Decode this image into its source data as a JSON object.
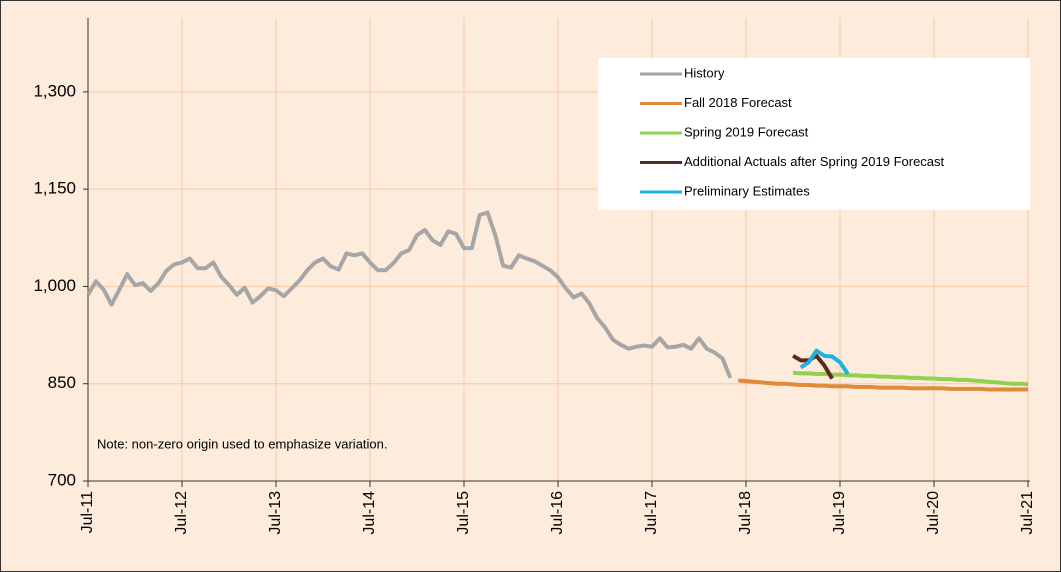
{
  "chart_data": {
    "type": "line",
    "note": "Note: non-zero origin used to emphasize variation.",
    "categories": [
      "Jul-11",
      null,
      null,
      null,
      null,
      null,
      null,
      null,
      null,
      null,
      null,
      null,
      "Jul-12",
      null,
      null,
      null,
      null,
      null,
      null,
      null,
      null,
      null,
      null,
      null,
      "Jul-13",
      null,
      null,
      null,
      null,
      null,
      null,
      null,
      null,
      null,
      null,
      null,
      "Jul-14",
      null,
      null,
      null,
      null,
      null,
      null,
      null,
      null,
      null,
      null,
      null,
      "Jul-15",
      null,
      null,
      null,
      null,
      null,
      null,
      null,
      null,
      null,
      null,
      null,
      "Jul-16",
      null,
      null,
      null,
      null,
      null,
      null,
      null,
      null,
      null,
      null,
      null,
      "Jul-17",
      null,
      null,
      null,
      null,
      null,
      null,
      null,
      null,
      null,
      null,
      null,
      "Jul-18",
      null,
      null,
      null,
      null,
      null,
      null,
      null,
      null,
      null,
      null,
      null,
      "Jul-19",
      null,
      null,
      null,
      null,
      null,
      null,
      null,
      null,
      null,
      null,
      null,
      "Jul-20",
      null,
      null,
      null,
      null,
      null,
      null,
      null,
      null,
      null,
      null,
      null,
      "Jul-21"
    ],
    "series": [
      {
        "name": "History",
        "color": "#a6a6a6",
        "values": [
          987,
          1008,
          995,
          972,
          995,
          1019,
          1002,
          1005,
          993,
          1005,
          1024,
          1034,
          1037,
          1043,
          1028,
          1028,
          1037,
          1015,
          1002,
          987,
          998,
          975,
          985,
          997,
          994,
          985,
          997,
          1009,
          1025,
          1037,
          1043,
          1031,
          1026,
          1051,
          1048,
          1051,
          1037,
          1025,
          1025,
          1036,
          1051,
          1056,
          1079,
          1087,
          1071,
          1064,
          1085,
          1081,
          1059,
          1059,
          1110,
          1114,
          1079,
          1032,
          1029,
          1048,
          1043,
          1039,
          1032,
          1025,
          1014,
          997,
          983,
          989,
          974,
          951,
          937,
          918,
          910,
          904,
          907,
          909,
          907,
          920,
          906,
          907,
          910,
          904,
          920,
          904,
          898,
          889,
          859,
          null,
          null,
          null,
          null,
          null,
          null,
          null,
          null,
          null,
          null,
          null,
          null,
          null,
          null,
          null,
          null,
          null,
          null,
          null,
          null,
          null,
          null,
          null,
          null,
          null,
          null,
          null,
          null,
          null,
          null,
          null,
          null,
          null,
          null,
          null,
          null,
          null,
          null
        ]
      },
      {
        "name": "Fall 2018 Forecast",
        "color": "#e08a3c",
        "values": [
          null,
          null,
          null,
          null,
          null,
          null,
          null,
          null,
          null,
          null,
          null,
          null,
          null,
          null,
          null,
          null,
          null,
          null,
          null,
          null,
          null,
          null,
          null,
          null,
          null,
          null,
          null,
          null,
          null,
          null,
          null,
          null,
          null,
          null,
          null,
          null,
          null,
          null,
          null,
          null,
          null,
          null,
          null,
          null,
          null,
          null,
          null,
          null,
          null,
          null,
          null,
          null,
          null,
          null,
          null,
          null,
          null,
          null,
          null,
          null,
          null,
          null,
          null,
          null,
          null,
          null,
          null,
          null,
          null,
          null,
          null,
          null,
          null,
          null,
          null,
          null,
          null,
          null,
          null,
          null,
          null,
          null,
          null,
          855,
          854,
          853,
          852,
          851,
          850,
          850,
          849,
          848,
          848,
          847,
          847,
          846,
          846,
          846,
          845,
          845,
          845,
          844,
          844,
          844,
          844,
          843,
          843,
          843,
          843,
          843,
          842,
          842,
          842,
          842,
          842,
          841,
          841,
          841,
          841,
          841,
          841
        ]
      },
      {
        "name": "Spring 2019 Forecast",
        "color": "#92d050",
        "values": [
          null,
          null,
          null,
          null,
          null,
          null,
          null,
          null,
          null,
          null,
          null,
          null,
          null,
          null,
          null,
          null,
          null,
          null,
          null,
          null,
          null,
          null,
          null,
          null,
          null,
          null,
          null,
          null,
          null,
          null,
          null,
          null,
          null,
          null,
          null,
          null,
          null,
          null,
          null,
          null,
          null,
          null,
          null,
          null,
          null,
          null,
          null,
          null,
          null,
          null,
          null,
          null,
          null,
          null,
          null,
          null,
          null,
          null,
          null,
          null,
          null,
          null,
          null,
          null,
          null,
          null,
          null,
          null,
          null,
          null,
          null,
          null,
          null,
          null,
          null,
          null,
          null,
          null,
          null,
          null,
          null,
          null,
          null,
          null,
          null,
          null,
          null,
          null,
          null,
          null,
          867,
          866,
          866,
          865,
          865,
          864,
          864,
          863,
          863,
          862,
          862,
          861,
          861,
          860,
          860,
          859,
          859,
          858,
          858,
          857,
          857,
          856,
          856,
          855,
          854,
          853,
          852,
          851,
          850,
          850,
          849
        ]
      },
      {
        "name": "Additional Actuals after Spring 2019 Forecast",
        "color": "#5a2a1e",
        "values": [
          null,
          null,
          null,
          null,
          null,
          null,
          null,
          null,
          null,
          null,
          null,
          null,
          null,
          null,
          null,
          null,
          null,
          null,
          null,
          null,
          null,
          null,
          null,
          null,
          null,
          null,
          null,
          null,
          null,
          null,
          null,
          null,
          null,
          null,
          null,
          null,
          null,
          null,
          null,
          null,
          null,
          null,
          null,
          null,
          null,
          null,
          null,
          null,
          null,
          null,
          null,
          null,
          null,
          null,
          null,
          null,
          null,
          null,
          null,
          null,
          null,
          null,
          null,
          null,
          null,
          null,
          null,
          null,
          null,
          null,
          null,
          null,
          null,
          null,
          null,
          null,
          null,
          null,
          null,
          null,
          null,
          null,
          null,
          null,
          null,
          null,
          null,
          null,
          null,
          null,
          893,
          886,
          886,
          893,
          878,
          858,
          null,
          null,
          null,
          null,
          null,
          null,
          null,
          null,
          null,
          null,
          null,
          null,
          null,
          null,
          null,
          null,
          null,
          null,
          null,
          null,
          null,
          null,
          null,
          null,
          null
        ]
      },
      {
        "name": "Preliminary Estimates",
        "color": "#1fb0e8",
        "values": [
          null,
          null,
          null,
          null,
          null,
          null,
          null,
          null,
          null,
          null,
          null,
          null,
          null,
          null,
          null,
          null,
          null,
          null,
          null,
          null,
          null,
          null,
          null,
          null,
          null,
          null,
          null,
          null,
          null,
          null,
          null,
          null,
          null,
          null,
          null,
          null,
          null,
          null,
          null,
          null,
          null,
          null,
          null,
          null,
          null,
          null,
          null,
          null,
          null,
          null,
          null,
          null,
          null,
          null,
          null,
          null,
          null,
          null,
          null,
          null,
          null,
          null,
          null,
          null,
          null,
          null,
          null,
          null,
          null,
          null,
          null,
          null,
          null,
          null,
          null,
          null,
          null,
          null,
          null,
          null,
          null,
          null,
          null,
          null,
          null,
          null,
          null,
          null,
          null,
          null,
          null,
          875,
          883,
          901,
          893,
          892,
          883,
          865,
          null,
          null,
          null,
          null,
          null,
          null,
          null,
          null,
          null,
          null,
          null,
          null,
          null,
          null,
          null,
          null,
          null,
          null,
          null,
          null,
          null,
          null,
          null
        ]
      }
    ],
    "ylim": [
      700,
      1400
    ],
    "yticks": [
      700,
      850,
      {
        "value": 1000,
        "label": "1,000"
      },
      {
        "value": 1150,
        "label": "1,150"
      },
      {
        "value": 1300,
        "label": "1,300"
      }
    ],
    "grid": true,
    "legend": "top-right"
  }
}
